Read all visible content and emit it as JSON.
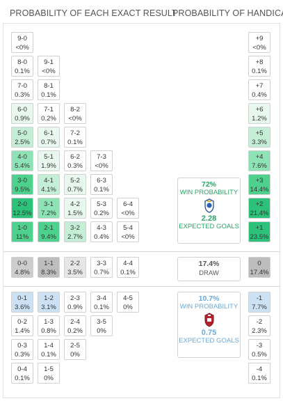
{
  "headers": {
    "exact": "PROBABILITY OF EACH EXACT RESULT",
    "handicap": "PROBABILITY OF HANDICAP"
  },
  "colors": {
    "home_scale": [
      "#ffffff",
      "#e9f8ef",
      "#c5eed6",
      "#8de3b5",
      "#4fd18e",
      "#2cc27a"
    ],
    "draw_scale": [
      "#ffffff",
      "#e6e6e6",
      "#cdcdcd",
      "#bdbdbd"
    ],
    "away_scale": [
      "#ffffff",
      "#e3eff9",
      "#cce2f4"
    ],
    "home_text": "#2aa564",
    "away_text": "#6aa9dc"
  },
  "home_results": [
    {
      "score": "9-0",
      "prob": "<0%",
      "shade": 0,
      "col": 0,
      "row": 0
    },
    {
      "score": "8-0",
      "prob": "0.1%",
      "shade": 0,
      "col": 0,
      "row": 1
    },
    {
      "score": "9-1",
      "prob": "<0%",
      "shade": 0,
      "col": 1,
      "row": 1
    },
    {
      "score": "7-0",
      "prob": "0.3%",
      "shade": 0,
      "col": 0,
      "row": 2
    },
    {
      "score": "8-1",
      "prob": "0.1%",
      "shade": 0,
      "col": 1,
      "row": 2
    },
    {
      "score": "6-0",
      "prob": "0.9%",
      "shade": 1,
      "col": 0,
      "row": 3
    },
    {
      "score": "7-1",
      "prob": "0.2%",
      "shade": 0,
      "col": 1,
      "row": 3
    },
    {
      "score": "8-2",
      "prob": "<0%",
      "shade": 0,
      "col": 2,
      "row": 3
    },
    {
      "score": "5-0",
      "prob": "2.5%",
      "shade": 2,
      "col": 0,
      "row": 4
    },
    {
      "score": "6-1",
      "prob": "0.7%",
      "shade": 1,
      "col": 1,
      "row": 4
    },
    {
      "score": "7-2",
      "prob": "0.1%",
      "shade": 0,
      "col": 2,
      "row": 4
    },
    {
      "score": "4-0",
      "prob": "5.4%",
      "shade": 3,
      "col": 0,
      "row": 5
    },
    {
      "score": "5-1",
      "prob": "1.9%",
      "shade": 1,
      "col": 1,
      "row": 5
    },
    {
      "score": "6-2",
      "prob": "0.3%",
      "shade": 0,
      "col": 2,
      "row": 5
    },
    {
      "score": "7-3",
      "prob": "<0%",
      "shade": 0,
      "col": 3,
      "row": 5
    },
    {
      "score": "3-0",
      "prob": "9.5%",
      "shade": 4,
      "col": 0,
      "row": 6
    },
    {
      "score": "4-1",
      "prob": "4.1%",
      "shade": 2,
      "col": 1,
      "row": 6
    },
    {
      "score": "5-2",
      "prob": "0.7%",
      "shade": 1,
      "col": 2,
      "row": 6
    },
    {
      "score": "6-3",
      "prob": "0.1%",
      "shade": 0,
      "col": 3,
      "row": 6
    },
    {
      "score": "2-0",
      "prob": "12.5%",
      "shade": 5,
      "col": 0,
      "row": 7
    },
    {
      "score": "3-1",
      "prob": "7.2%",
      "shade": 3,
      "col": 1,
      "row": 7
    },
    {
      "score": "4-2",
      "prob": "1.5%",
      "shade": 1,
      "col": 2,
      "row": 7
    },
    {
      "score": "5-3",
      "prob": "0.2%",
      "shade": 0,
      "col": 3,
      "row": 7
    },
    {
      "score": "6-4",
      "prob": "<0%",
      "shade": 0,
      "col": 4,
      "row": 7
    },
    {
      "score": "1-0",
      "prob": "11%",
      "shade": 4,
      "col": 0,
      "row": 8
    },
    {
      "score": "2-1",
      "prob": "9.4%",
      "shade": 4,
      "col": 1,
      "row": 8
    },
    {
      "score": "3-2",
      "prob": "2.7%",
      "shade": 2,
      "col": 2,
      "row": 8
    },
    {
      "score": "4-3",
      "prob": "0.4%",
      "shade": 0,
      "col": 3,
      "row": 8
    },
    {
      "score": "5-4",
      "prob": "<0%",
      "shade": 0,
      "col": 4,
      "row": 8
    }
  ],
  "draw_results": [
    {
      "score": "0-0",
      "prob": "4.8%",
      "shade": 2,
      "col": 0
    },
    {
      "score": "1-1",
      "prob": "8.3%",
      "shade": 3,
      "col": 1
    },
    {
      "score": "2-2",
      "prob": "3.5%",
      "shade": 1,
      "col": 2
    },
    {
      "score": "3-3",
      "prob": "0.7%",
      "shade": 0,
      "col": 3
    },
    {
      "score": "4-4",
      "prob": "0.1%",
      "shade": 0,
      "col": 4
    }
  ],
  "away_results": [
    {
      "score": "0-1",
      "prob": "3.6%",
      "shade": 2,
      "col": 0,
      "row": 0
    },
    {
      "score": "1-2",
      "prob": "3.1%",
      "shade": 2,
      "col": 1,
      "row": 0
    },
    {
      "score": "2-3",
      "prob": "0.9%",
      "shade": 0,
      "col": 2,
      "row": 0
    },
    {
      "score": "3-4",
      "prob": "0.1%",
      "shade": 0,
      "col": 3,
      "row": 0
    },
    {
      "score": "4-5",
      "prob": "0%",
      "shade": 0,
      "col": 4,
      "row": 0
    },
    {
      "score": "0-2",
      "prob": "1.4%",
      "shade": 0,
      "col": 0,
      "row": 1
    },
    {
      "score": "1-3",
      "prob": "0.8%",
      "shade": 0,
      "col": 1,
      "row": 1
    },
    {
      "score": "2-4",
      "prob": "0.2%",
      "shade": 0,
      "col": 2,
      "row": 1
    },
    {
      "score": "3-5",
      "prob": "0%",
      "shade": 0,
      "col": 3,
      "row": 1
    },
    {
      "score": "0-3",
      "prob": "0.3%",
      "shade": 0,
      "col": 0,
      "row": 2
    },
    {
      "score": "1-4",
      "prob": "0.1%",
      "shade": 0,
      "col": 1,
      "row": 2
    },
    {
      "score": "2-5",
      "prob": "0%",
      "shade": 0,
      "col": 2,
      "row": 2
    },
    {
      "score": "0-4",
      "prob": "0.1%",
      "shade": 0,
      "col": 0,
      "row": 3
    },
    {
      "score": "1-5",
      "prob": "0%",
      "shade": 0,
      "col": 1,
      "row": 3
    }
  ],
  "handicap": [
    {
      "label": "+9",
      "prob": "<0%",
      "group": "home",
      "shade": 0
    },
    {
      "label": "+8",
      "prob": "0.1%",
      "group": "home",
      "shade": 0
    },
    {
      "label": "+7",
      "prob": "0.4%",
      "group": "home",
      "shade": 0
    },
    {
      "label": "+6",
      "prob": "1.2%",
      "group": "home",
      "shade": 1
    },
    {
      "label": "+5",
      "prob": "3.3%",
      "group": "home",
      "shade": 2
    },
    {
      "label": "+4",
      "prob": "7.6%",
      "group": "home",
      "shade": 3
    },
    {
      "label": "+3",
      "prob": "14.4%",
      "group": "home",
      "shade": 4
    },
    {
      "label": "+2",
      "prob": "21.4%",
      "group": "home",
      "shade": 5
    },
    {
      "label": "+1",
      "prob": "23.5%",
      "group": "home",
      "shade": 5
    },
    {
      "label": "0",
      "prob": "17.4%",
      "group": "draw",
      "shade": 3
    },
    {
      "label": "-1",
      "prob": "7.7%",
      "group": "away",
      "shade": 2
    },
    {
      "label": "-2",
      "prob": "2.3%",
      "group": "away",
      "shade": 0
    },
    {
      "label": "-3",
      "prob": "0.5%",
      "group": "away",
      "shade": 0
    },
    {
      "label": "-4",
      "prob": "0.1%",
      "group": "away",
      "shade": 0
    }
  ],
  "summary": {
    "home": {
      "win_pct": "72%",
      "win_label": "WIN PROBABILITY",
      "xg": "2.28",
      "xg_label": "EXPECTED GOALS",
      "icon": "home-team-crest-icon"
    },
    "draw": {
      "pct": "17.4%",
      "label": "DRAW"
    },
    "away": {
      "win_pct": "10.7%",
      "win_label": "WIN PROBABILITY",
      "xg": "0.75",
      "xg_label": "EXPECTED GOALS",
      "icon": "away-team-crest-icon"
    }
  }
}
